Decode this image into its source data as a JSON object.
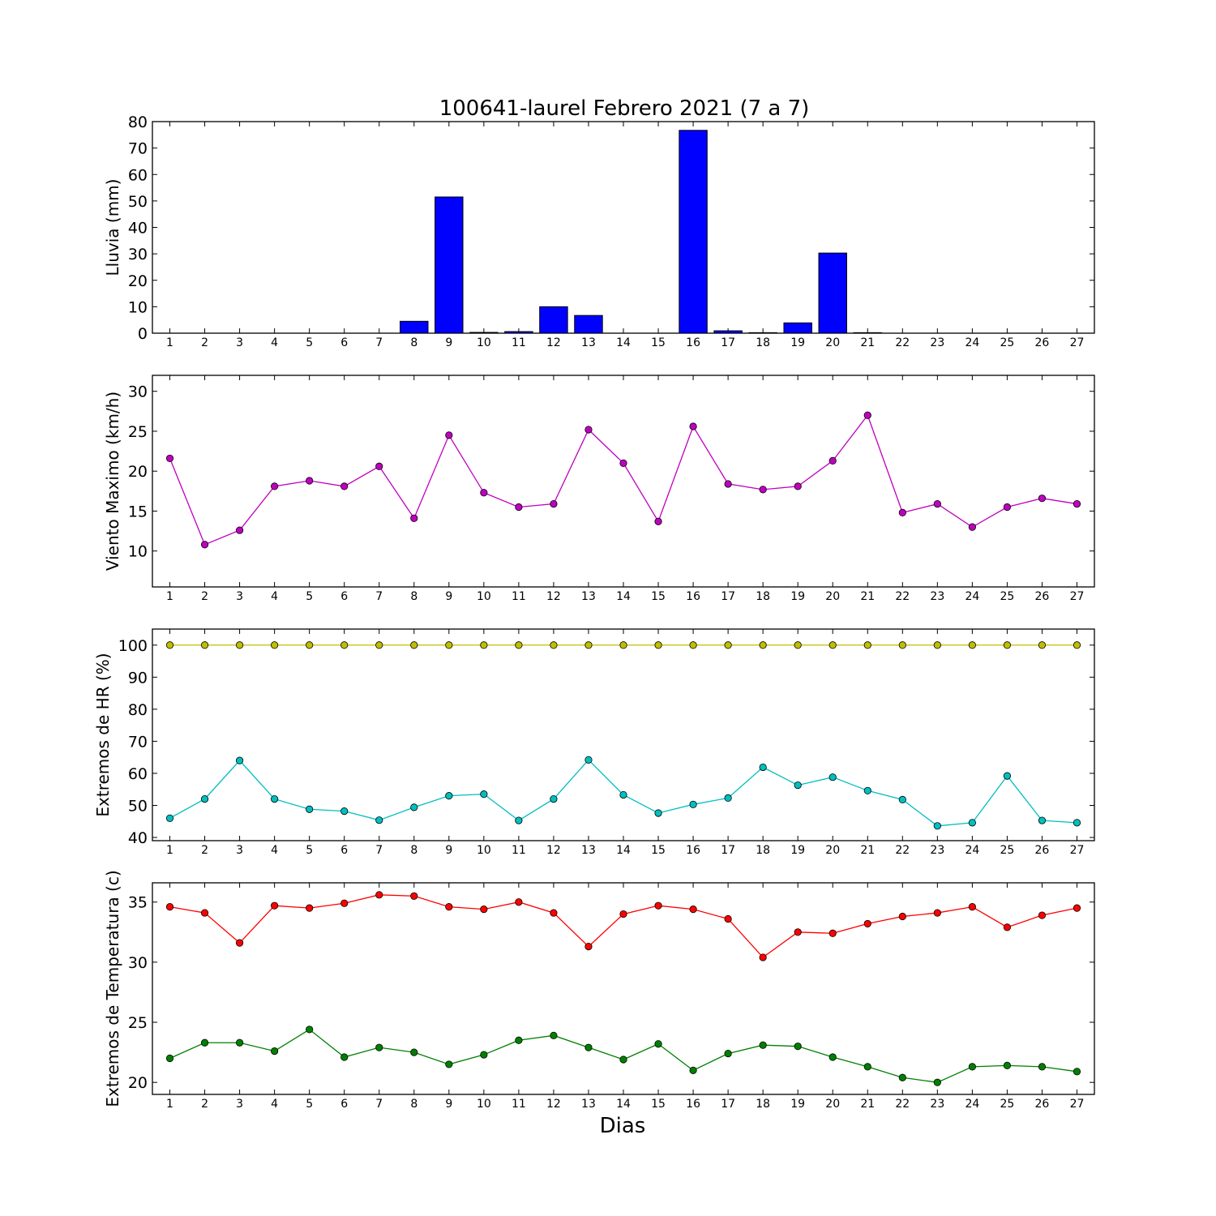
{
  "title": "100641-laurel Febrero 2021  (7 a 7)",
  "xlabel": "Dias",
  "chart_data": [
    {
      "type": "bar",
      "ylabel": "Lluvia (mm)",
      "ylim": [
        0,
        80
      ],
      "yticks": [
        0,
        10,
        20,
        30,
        40,
        50,
        60,
        70,
        80
      ],
      "categories": [
        "1",
        "2",
        "3",
        "4",
        "5",
        "6",
        "7",
        "8",
        "9",
        "10",
        "11",
        "12",
        "13",
        "14",
        "15",
        "16",
        "17",
        "18",
        "19",
        "20",
        "21",
        "22",
        "23",
        "24",
        "25",
        "26",
        "27"
      ],
      "series": [
        {
          "color": "#0000ff",
          "values": [
            0,
            0,
            0,
            0,
            0,
            0,
            0,
            4.5,
            51.5,
            0.3,
            0.6,
            10,
            6.7,
            0,
            0,
            76.7,
            0.9,
            0.2,
            3.9,
            30.3,
            0.2,
            0,
            0,
            0,
            0,
            0,
            0
          ]
        }
      ]
    },
    {
      "type": "line",
      "ylabel": "Viento Maximo (km/h)",
      "ylim": [
        5.5,
        32
      ],
      "yticks": [
        10,
        15,
        20,
        25,
        30
      ],
      "categories": [
        "1",
        "2",
        "3",
        "4",
        "5",
        "6",
        "7",
        "8",
        "9",
        "10",
        "11",
        "12",
        "13",
        "14",
        "15",
        "16",
        "17",
        "18",
        "19",
        "20",
        "21",
        "22",
        "23",
        "24",
        "25",
        "26",
        "27"
      ],
      "series": [
        {
          "color": "#bf00bf",
          "values": [
            21.6,
            10.8,
            12.6,
            18.1,
            18.8,
            18.1,
            20.6,
            14.1,
            24.5,
            17.3,
            15.5,
            15.9,
            25.2,
            21.0,
            13.7,
            25.6,
            18.4,
            17.7,
            18.1,
            21.3,
            27.0,
            14.8,
            15.9,
            13.0,
            15.5,
            16.6,
            15.9
          ]
        }
      ]
    },
    {
      "type": "line",
      "ylabel": "Extremos de HR (%)",
      "ylim": [
        39,
        105
      ],
      "yticks": [
        40,
        50,
        60,
        70,
        80,
        90,
        100
      ],
      "categories": [
        "1",
        "2",
        "3",
        "4",
        "5",
        "6",
        "7",
        "8",
        "9",
        "10",
        "11",
        "12",
        "13",
        "14",
        "15",
        "16",
        "17",
        "18",
        "19",
        "20",
        "21",
        "22",
        "23",
        "24",
        "25",
        "26",
        "27"
      ],
      "series": [
        {
          "color": "#bfbf00",
          "values": [
            100,
            100,
            100,
            100,
            100,
            100,
            100,
            100,
            100,
            100,
            100,
            100,
            100,
            100,
            100,
            100,
            100,
            100,
            100,
            100,
            100,
            100,
            100,
            100,
            100,
            100,
            100
          ]
        },
        {
          "color": "#00bfbf",
          "values": [
            46,
            52,
            64,
            52,
            48.8,
            48.2,
            45.4,
            49.4,
            53,
            53.5,
            45.3,
            52,
            64.2,
            53.3,
            47.6,
            50.3,
            52.3,
            61.9,
            56.3,
            58.8,
            54.6,
            51.8,
            43.6,
            44.6,
            59.2,
            45.3,
            44.6
          ]
        }
      ]
    },
    {
      "type": "line",
      "ylabel": "Extremos de Temperatura (c)",
      "ylim": [
        19,
        36.6
      ],
      "yticks": [
        20,
        25,
        30,
        35
      ],
      "categories": [
        "1",
        "2",
        "3",
        "4",
        "5",
        "6",
        "7",
        "8",
        "9",
        "10",
        "11",
        "12",
        "13",
        "14",
        "15",
        "16",
        "17",
        "18",
        "19",
        "20",
        "21",
        "22",
        "23",
        "24",
        "25",
        "26",
        "27"
      ],
      "series": [
        {
          "color": "#ff0000",
          "values": [
            34.6,
            34.1,
            31.6,
            34.7,
            34.5,
            34.9,
            35.6,
            35.5,
            34.6,
            34.4,
            35.0,
            34.1,
            31.3,
            34.0,
            34.7,
            34.4,
            33.6,
            30.4,
            32.5,
            32.4,
            33.2,
            33.8,
            34.1,
            34.6,
            32.9,
            33.9,
            34.5
          ]
        },
        {
          "color": "#008000",
          "values": [
            22.0,
            23.3,
            23.3,
            22.6,
            24.4,
            22.1,
            22.9,
            22.5,
            21.5,
            22.3,
            23.5,
            23.9,
            22.9,
            21.9,
            23.2,
            21.0,
            22.4,
            23.1,
            23.0,
            22.1,
            21.3,
            20.4,
            20.0,
            21.3,
            21.4,
            21.3,
            20.9
          ]
        }
      ]
    }
  ]
}
